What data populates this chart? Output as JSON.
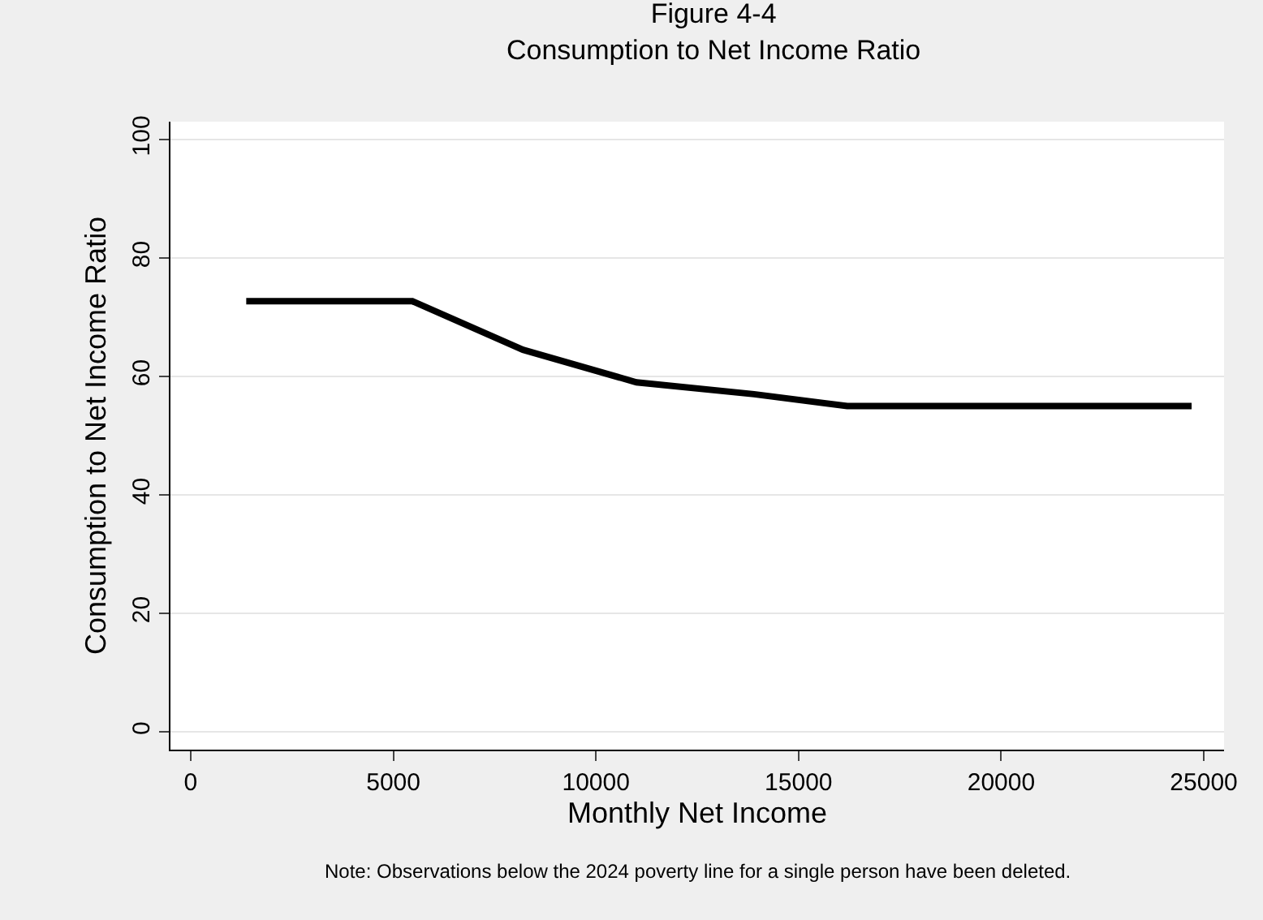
{
  "chart_data": {
    "type": "line",
    "title": "Figure 4-4\nConsumption to Net Income Ratio",
    "xlabel": "Monthly Net Income",
    "ylabel": "Consumption to Net Income Ratio",
    "x": [
      1370,
      5470,
      8200,
      11000,
      13900,
      16200,
      20300,
      24700
    ],
    "series": [
      {
        "color": "#000000",
        "values": [
          72.7,
          72.7,
          64.5,
          59,
          57,
          55,
          55,
          55
        ]
      }
    ],
    "xlim": [
      -500,
      25500
    ],
    "xticks": [
      0,
      5000,
      10000,
      15000,
      20000,
      25000
    ],
    "ylim": [
      -3,
      103
    ],
    "yticks": [
      0,
      20,
      40,
      60,
      80,
      100
    ],
    "grid": "y",
    "marker": "none",
    "line_style": "solid",
    "annotations": [
      "Note: Observations below the 2024 poverty line for a single person have been deleted."
    ]
  }
}
